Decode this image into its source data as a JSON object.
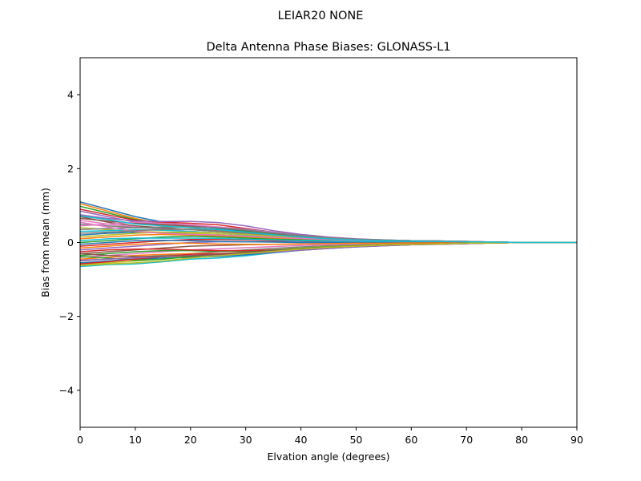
{
  "chart_data": {
    "type": "line",
    "suptitle": "LEIAR20         NONE",
    "title": "Delta Antenna Phase Biases: GLONASS-L1",
    "xlabel": "Elvation angle (degrees)",
    "ylabel": "Bias from mean (mm)",
    "xlim": [
      0,
      90
    ],
    "ylim": [
      -5,
      5
    ],
    "xticks": [
      0,
      10,
      20,
      30,
      40,
      50,
      60,
      70,
      80,
      90
    ],
    "yticks": [
      -4,
      -2,
      0,
      2,
      4
    ],
    "ytick_labels": [
      "−4",
      "−2",
      "0",
      "2",
      "4"
    ],
    "grid": false,
    "legend": "none",
    "x": [
      0,
      5,
      10,
      15,
      20,
      25,
      30,
      35,
      40,
      45,
      50,
      55,
      60,
      65,
      70,
      75,
      80,
      85,
      90
    ],
    "series_colors": [
      "#1f77b4",
      "#ff7f0e",
      "#2ca02c",
      "#d62728",
      "#9467bd",
      "#8c564b",
      "#e377c2",
      "#7f7f7f",
      "#bcbd22",
      "#17becf"
    ],
    "series": [
      {
        "values": [
          1.1,
          0.9,
          0.7,
          0.55,
          0.45,
          0.38,
          0.3,
          0.22,
          0.16,
          0.11,
          0.07,
          0.05,
          0.04,
          0.03,
          0.02,
          0.01,
          0.0,
          0.0,
          0.0
        ]
      },
      {
        "values": [
          1.05,
          0.85,
          0.65,
          0.5,
          0.4,
          0.32,
          0.25,
          0.19,
          0.14,
          0.1,
          0.07,
          0.05,
          0.04,
          0.03,
          0.02,
          0.01,
          0.0,
          0.0,
          0.0
        ]
      },
      {
        "values": [
          0.98,
          0.8,
          0.62,
          0.52,
          0.46,
          0.4,
          0.32,
          0.24,
          0.17,
          0.12,
          0.08,
          0.06,
          0.04,
          0.03,
          0.02,
          0.01,
          0.0,
          0.0,
          0.0
        ]
      },
      {
        "values": [
          0.9,
          0.75,
          0.6,
          0.55,
          0.52,
          0.48,
          0.38,
          0.28,
          0.19,
          0.13,
          0.09,
          0.06,
          0.05,
          0.04,
          0.02,
          0.01,
          0.0,
          0.0,
          0.0
        ]
      },
      {
        "values": [
          0.75,
          0.65,
          0.58,
          0.57,
          0.57,
          0.54,
          0.45,
          0.32,
          0.22,
          0.15,
          0.1,
          0.07,
          0.05,
          0.04,
          0.03,
          0.01,
          0.0,
          0.0,
          0.0
        ]
      },
      {
        "values": [
          0.7,
          0.55,
          0.45,
          0.4,
          0.35,
          0.3,
          0.25,
          0.2,
          0.15,
          0.11,
          0.08,
          0.06,
          0.05,
          0.04,
          0.03,
          0.01,
          0.0,
          0.0,
          0.0
        ]
      },
      {
        "values": [
          0.6,
          0.5,
          0.42,
          0.35,
          0.3,
          0.26,
          0.21,
          0.17,
          0.13,
          0.1,
          0.07,
          0.05,
          0.04,
          0.03,
          0.02,
          0.01,
          0.0,
          0.0,
          0.0
        ]
      },
      {
        "values": [
          0.5,
          0.45,
          0.4,
          0.38,
          0.35,
          0.3,
          0.24,
          0.18,
          0.13,
          0.09,
          0.06,
          0.05,
          0.04,
          0.03,
          0.02,
          0.01,
          0.0,
          0.0,
          0.0
        ]
      },
      {
        "values": [
          0.4,
          0.35,
          0.3,
          0.28,
          0.25,
          0.22,
          0.18,
          0.14,
          0.1,
          0.08,
          0.06,
          0.04,
          0.03,
          0.02,
          0.02,
          0.01,
          0.0,
          0.0,
          0.0
        ]
      },
      {
        "values": [
          0.3,
          0.32,
          0.35,
          0.33,
          0.3,
          0.26,
          0.21,
          0.16,
          0.12,
          0.09,
          0.06,
          0.05,
          0.04,
          0.03,
          0.02,
          0.01,
          0.0,
          0.0,
          0.0
        ]
      },
      {
        "values": [
          0.2,
          0.25,
          0.28,
          0.26,
          0.22,
          0.18,
          0.15,
          0.12,
          0.09,
          0.07,
          0.05,
          0.04,
          0.03,
          0.02,
          0.01,
          0.01,
          0.0,
          0.0,
          0.0
        ]
      },
      {
        "values": [
          0.1,
          0.15,
          0.2,
          0.22,
          0.2,
          0.17,
          0.14,
          0.11,
          0.08,
          0.06,
          0.05,
          0.04,
          0.03,
          0.02,
          0.01,
          0.01,
          0.0,
          0.0,
          0.0
        ]
      },
      {
        "values": [
          0.0,
          0.05,
          0.1,
          0.15,
          0.17,
          0.15,
          0.12,
          0.09,
          0.07,
          0.05,
          0.04,
          0.03,
          0.02,
          0.02,
          0.01,
          0.0,
          0.0,
          0.0,
          0.0
        ]
      },
      {
        "values": [
          -0.1,
          -0.05,
          0.0,
          0.05,
          0.08,
          0.08,
          0.07,
          0.05,
          0.04,
          0.03,
          0.02,
          0.02,
          0.01,
          0.01,
          0.0,
          0.0,
          0.0,
          0.0,
          0.0
        ]
      },
      {
        "values": [
          -0.2,
          -0.15,
          -0.1,
          -0.05,
          0.0,
          0.02,
          0.02,
          0.02,
          0.01,
          0.01,
          0.01,
          0.0,
          0.0,
          0.0,
          0.0,
          0.0,
          0.0,
          0.0,
          0.0
        ]
      },
      {
        "values": [
          -0.3,
          -0.25,
          -0.2,
          -0.15,
          -0.1,
          -0.08,
          -0.06,
          -0.05,
          -0.04,
          -0.03,
          -0.02,
          -0.02,
          -0.01,
          -0.01,
          -0.01,
          0.0,
          0.0,
          0.0,
          0.0
        ]
      },
      {
        "values": [
          -0.4,
          -0.35,
          -0.3,
          -0.25,
          -0.2,
          -0.17,
          -0.14,
          -0.11,
          -0.08,
          -0.06,
          -0.05,
          -0.04,
          -0.03,
          -0.02,
          -0.01,
          -0.01,
          0.0,
          0.0,
          0.0
        ]
      },
      {
        "values": [
          -0.5,
          -0.45,
          -0.4,
          -0.35,
          -0.3,
          -0.25,
          -0.2,
          -0.16,
          -0.12,
          -0.09,
          -0.07,
          -0.05,
          -0.04,
          -0.03,
          -0.02,
          -0.01,
          0.0,
          0.0,
          0.0
        ]
      },
      {
        "values": [
          -0.6,
          -0.55,
          -0.5,
          -0.45,
          -0.38,
          -0.32,
          -0.26,
          -0.2,
          -0.15,
          -0.11,
          -0.08,
          -0.06,
          -0.05,
          -0.04,
          -0.02,
          -0.01,
          0.0,
          0.0,
          0.0
        ]
      },
      {
        "values": [
          -0.65,
          -0.6,
          -0.58,
          -0.52,
          -0.45,
          -0.42,
          -0.36,
          -0.28,
          -0.21,
          -0.15,
          -0.11,
          -0.08,
          -0.06,
          -0.04,
          -0.03,
          -0.01,
          0.0,
          0.0,
          0.0
        ]
      },
      {
        "values": [
          -0.55,
          -0.5,
          -0.45,
          -0.42,
          -0.4,
          -0.38,
          -0.33,
          -0.27,
          -0.21,
          -0.16,
          -0.12,
          -0.09,
          -0.06,
          -0.05,
          -0.03,
          -0.01,
          0.0,
          0.0,
          0.0
        ]
      },
      {
        "values": [
          -0.45,
          -0.4,
          -0.35,
          -0.32,
          -0.3,
          -0.3,
          -0.28,
          -0.24,
          -0.19,
          -0.15,
          -0.11,
          -0.08,
          -0.06,
          -0.04,
          -0.03,
          -0.01,
          0.0,
          0.0,
          0.0
        ]
      },
      {
        "values": [
          -0.35,
          -0.3,
          -0.25,
          -0.22,
          -0.22,
          -0.24,
          -0.24,
          -0.22,
          -0.18,
          -0.14,
          -0.1,
          -0.08,
          -0.06,
          -0.04,
          -0.03,
          -0.01,
          0.0,
          0.0,
          0.0
        ]
      },
      {
        "values": [
          -0.25,
          -0.2,
          -0.18,
          -0.18,
          -0.2,
          -0.22,
          -0.22,
          -0.2,
          -0.17,
          -0.13,
          -0.1,
          -0.07,
          -0.05,
          -0.04,
          -0.02,
          -0.01,
          0.0,
          0.0,
          0.0
        ]
      },
      {
        "values": [
          0.85,
          0.7,
          0.55,
          0.48,
          0.45,
          0.42,
          0.36,
          0.28,
          0.2,
          0.14,
          0.09,
          0.06,
          0.05,
          0.04,
          0.02,
          0.01,
          0.0,
          0.0,
          0.0
        ]
      },
      {
        "values": [
          0.65,
          0.58,
          0.52,
          0.48,
          0.44,
          0.4,
          0.33,
          0.25,
          0.18,
          0.13,
          0.09,
          0.06,
          0.05,
          0.04,
          0.02,
          0.01,
          0.0,
          0.0,
          0.0
        ]
      },
      {
        "values": [
          0.45,
          0.5,
          0.55,
          0.52,
          0.48,
          0.42,
          0.35,
          0.27,
          0.19,
          0.14,
          0.09,
          0.07,
          0.05,
          0.04,
          0.03,
          0.01,
          0.0,
          0.0,
          0.0
        ]
      },
      {
        "values": [
          0.35,
          0.38,
          0.4,
          0.42,
          0.42,
          0.4,
          0.34,
          0.26,
          0.19,
          0.13,
          0.09,
          0.07,
          0.05,
          0.04,
          0.03,
          0.01,
          0.0,
          0.0,
          0.0
        ]
      },
      {
        "values": [
          0.15,
          0.2,
          0.25,
          0.28,
          0.28,
          0.26,
          0.22,
          0.17,
          0.12,
          0.09,
          0.06,
          0.05,
          0.04,
          0.03,
          0.02,
          0.01,
          0.0,
          0.0,
          0.0
        ]
      },
      {
        "values": [
          0.05,
          0.1,
          0.12,
          0.12,
          0.12,
          0.11,
          0.09,
          0.07,
          0.05,
          0.04,
          0.03,
          0.02,
          0.02,
          0.01,
          0.01,
          0.0,
          0.0,
          0.0,
          0.0
        ]
      },
      {
        "values": [
          -0.05,
          0.0,
          0.05,
          0.06,
          0.05,
          0.03,
          0.02,
          0.01,
          0.0,
          0.0,
          0.0,
          0.0,
          0.0,
          0.0,
          0.0,
          0.0,
          0.0,
          0.0,
          0.0
        ]
      },
      {
        "values": [
          -0.15,
          -0.1,
          -0.05,
          -0.02,
          -0.02,
          -0.04,
          -0.05,
          -0.05,
          -0.04,
          -0.03,
          -0.02,
          -0.02,
          -0.01,
          -0.01,
          -0.01,
          0.0,
          0.0,
          0.0,
          0.0
        ]
      },
      {
        "values": [
          -0.38,
          -0.42,
          -0.48,
          -0.45,
          -0.38,
          -0.33,
          -0.27,
          -0.21,
          -0.16,
          -0.12,
          -0.09,
          -0.07,
          -0.05,
          -0.04,
          -0.02,
          -0.01,
          0.0,
          0.0,
          0.0
        ]
      },
      {
        "values": [
          -0.58,
          -0.52,
          -0.45,
          -0.38,
          -0.32,
          -0.3,
          -0.27,
          -0.23,
          -0.18,
          -0.14,
          -0.1,
          -0.08,
          -0.06,
          -0.04,
          -0.03,
          -0.01,
          0.0,
          0.0,
          0.0
        ]
      },
      {
        "values": [
          -0.48,
          -0.45,
          -0.42,
          -0.38,
          -0.35,
          -0.33,
          -0.3,
          -0.26,
          -0.21,
          -0.16,
          -0.12,
          -0.09,
          -0.06,
          -0.05,
          -0.03,
          -0.01,
          0.0,
          0.0,
          0.0
        ]
      },
      {
        "values": [
          -0.3,
          -0.35,
          -0.38,
          -0.38,
          -0.36,
          -0.32,
          -0.27,
          -0.22,
          -0.17,
          -0.13,
          -0.1,
          -0.07,
          -0.05,
          -0.04,
          -0.02,
          -0.01,
          0.0,
          0.0,
          0.0
        ]
      },
      {
        "values": [
          0.55,
          0.42,
          0.3,
          0.25,
          0.22,
          0.2,
          0.17,
          0.14,
          0.11,
          0.08,
          0.06,
          0.05,
          0.04,
          0.03,
          0.02,
          0.01,
          0.0,
          0.0,
          0.0
        ]
      },
      {
        "values": [
          0.25,
          0.28,
          0.32,
          0.35,
          0.36,
          0.34,
          0.28,
          0.21,
          0.15,
          0.11,
          0.08,
          0.06,
          0.04,
          0.03,
          0.02,
          0.01,
          0.0,
          0.0,
          0.0
        ]
      },
      {
        "values": [
          -0.62,
          -0.58,
          -0.55,
          -0.5,
          -0.42,
          -0.36,
          -0.3,
          -0.24,
          -0.18,
          -0.13,
          -0.1,
          -0.07,
          -0.05,
          -0.04,
          -0.02,
          -0.01,
          0.0,
          0.0,
          0.0
        ]
      },
      {
        "values": [
          0.72,
          0.62,
          0.5,
          0.45,
          0.4,
          0.35,
          0.28,
          0.21,
          0.15,
          0.1,
          0.07,
          0.05,
          0.04,
          0.03,
          0.02,
          0.01,
          0.0,
          0.0,
          0.0
        ]
      }
    ]
  }
}
